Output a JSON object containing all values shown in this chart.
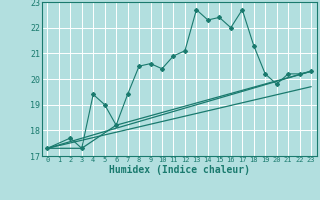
{
  "background_color": "#b2dfdf",
  "grid_color": "#ffffff",
  "line_color": "#1a7a6e",
  "xlabel": "Humidex (Indice chaleur)",
  "xlabel_fontsize": 7,
  "ylim": [
    17,
    23
  ],
  "xlim": [
    -0.5,
    23.5
  ],
  "yticks": [
    17,
    18,
    19,
    20,
    21,
    22,
    23
  ],
  "xticks": [
    0,
    1,
    2,
    3,
    4,
    5,
    6,
    7,
    8,
    9,
    10,
    11,
    12,
    13,
    14,
    15,
    16,
    17,
    18,
    19,
    20,
    21,
    22,
    23
  ],
  "series1_x": [
    0,
    2,
    3,
    4,
    5,
    6,
    7,
    8,
    9,
    10,
    11,
    12,
    13,
    14,
    15,
    16,
    17,
    18,
    19,
    20,
    21,
    22,
    23
  ],
  "series1_y": [
    17.3,
    17.7,
    17.3,
    19.4,
    19.0,
    18.2,
    19.4,
    20.5,
    20.6,
    20.4,
    20.9,
    21.1,
    22.7,
    22.3,
    22.4,
    22.0,
    22.7,
    21.3,
    20.2,
    19.8,
    20.2,
    20.2,
    20.3
  ],
  "series2_x": [
    0,
    3,
    6,
    23
  ],
  "series2_y": [
    17.3,
    17.3,
    18.2,
    20.3
  ],
  "series3_x": [
    0,
    23
  ],
  "series3_y": [
    17.3,
    20.3
  ],
  "series4_x": [
    0,
    23
  ],
  "series4_y": [
    17.3,
    19.7
  ]
}
